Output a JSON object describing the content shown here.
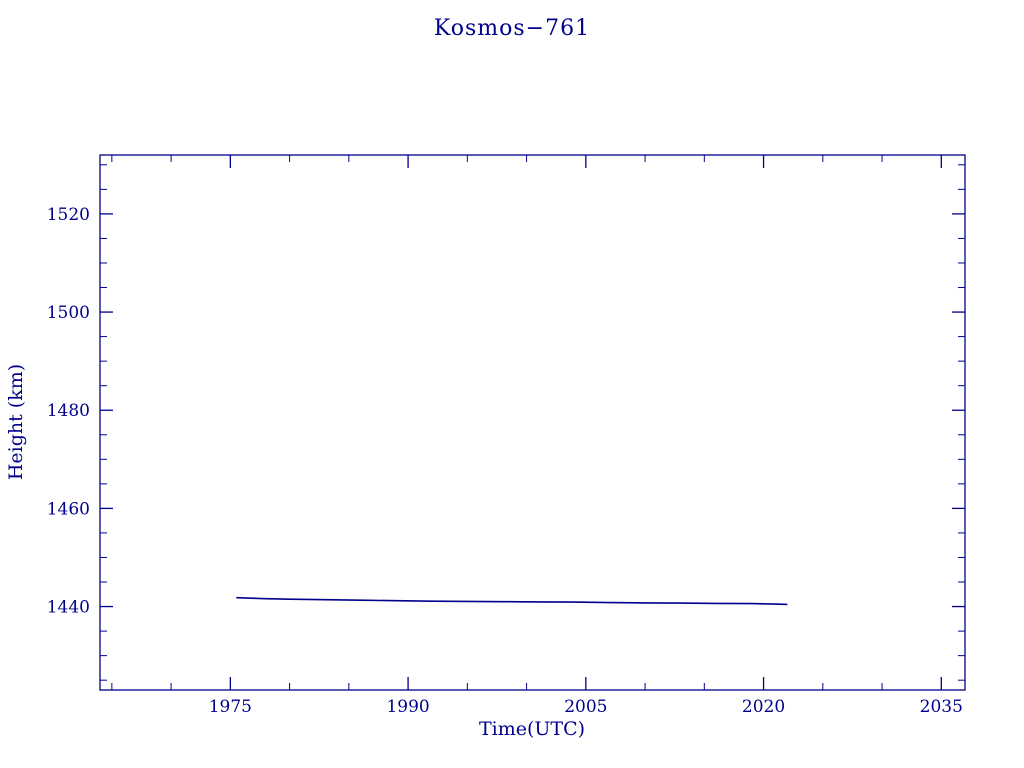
{
  "chart_data": {
    "type": "line",
    "title": "Kosmos−761",
    "xlabel": "Time(UTC)",
    "ylabel": "Height (km)",
    "xlim": [
      1964,
      2037
    ],
    "ylim": [
      1423,
      1532
    ],
    "x_major_ticks": [
      1975,
      1990,
      2005,
      2020,
      2035
    ],
    "y_major_ticks": [
      1440,
      1460,
      1480,
      1500,
      1520
    ],
    "x_minor_step": 5,
    "y_minor_step": 5,
    "grid": false,
    "legend": "none",
    "line_color": "#00008b",
    "frame_color": "#00008b",
    "series": [
      {
        "name": "height",
        "x": [
          1975.5,
          1978,
          1980,
          1983,
          1986,
          1989,
          1992,
          1995,
          1998,
          2001,
          2004,
          2007,
          2010,
          2013,
          2016,
          2019,
          2021,
          2022
        ],
        "y": [
          1441.8,
          1441.6,
          1441.5,
          1441.4,
          1441.3,
          1441.2,
          1441.1,
          1441.05,
          1441.0,
          1440.95,
          1440.9,
          1440.8,
          1440.75,
          1440.7,
          1440.65,
          1440.6,
          1440.5,
          1440.45
        ]
      }
    ]
  }
}
